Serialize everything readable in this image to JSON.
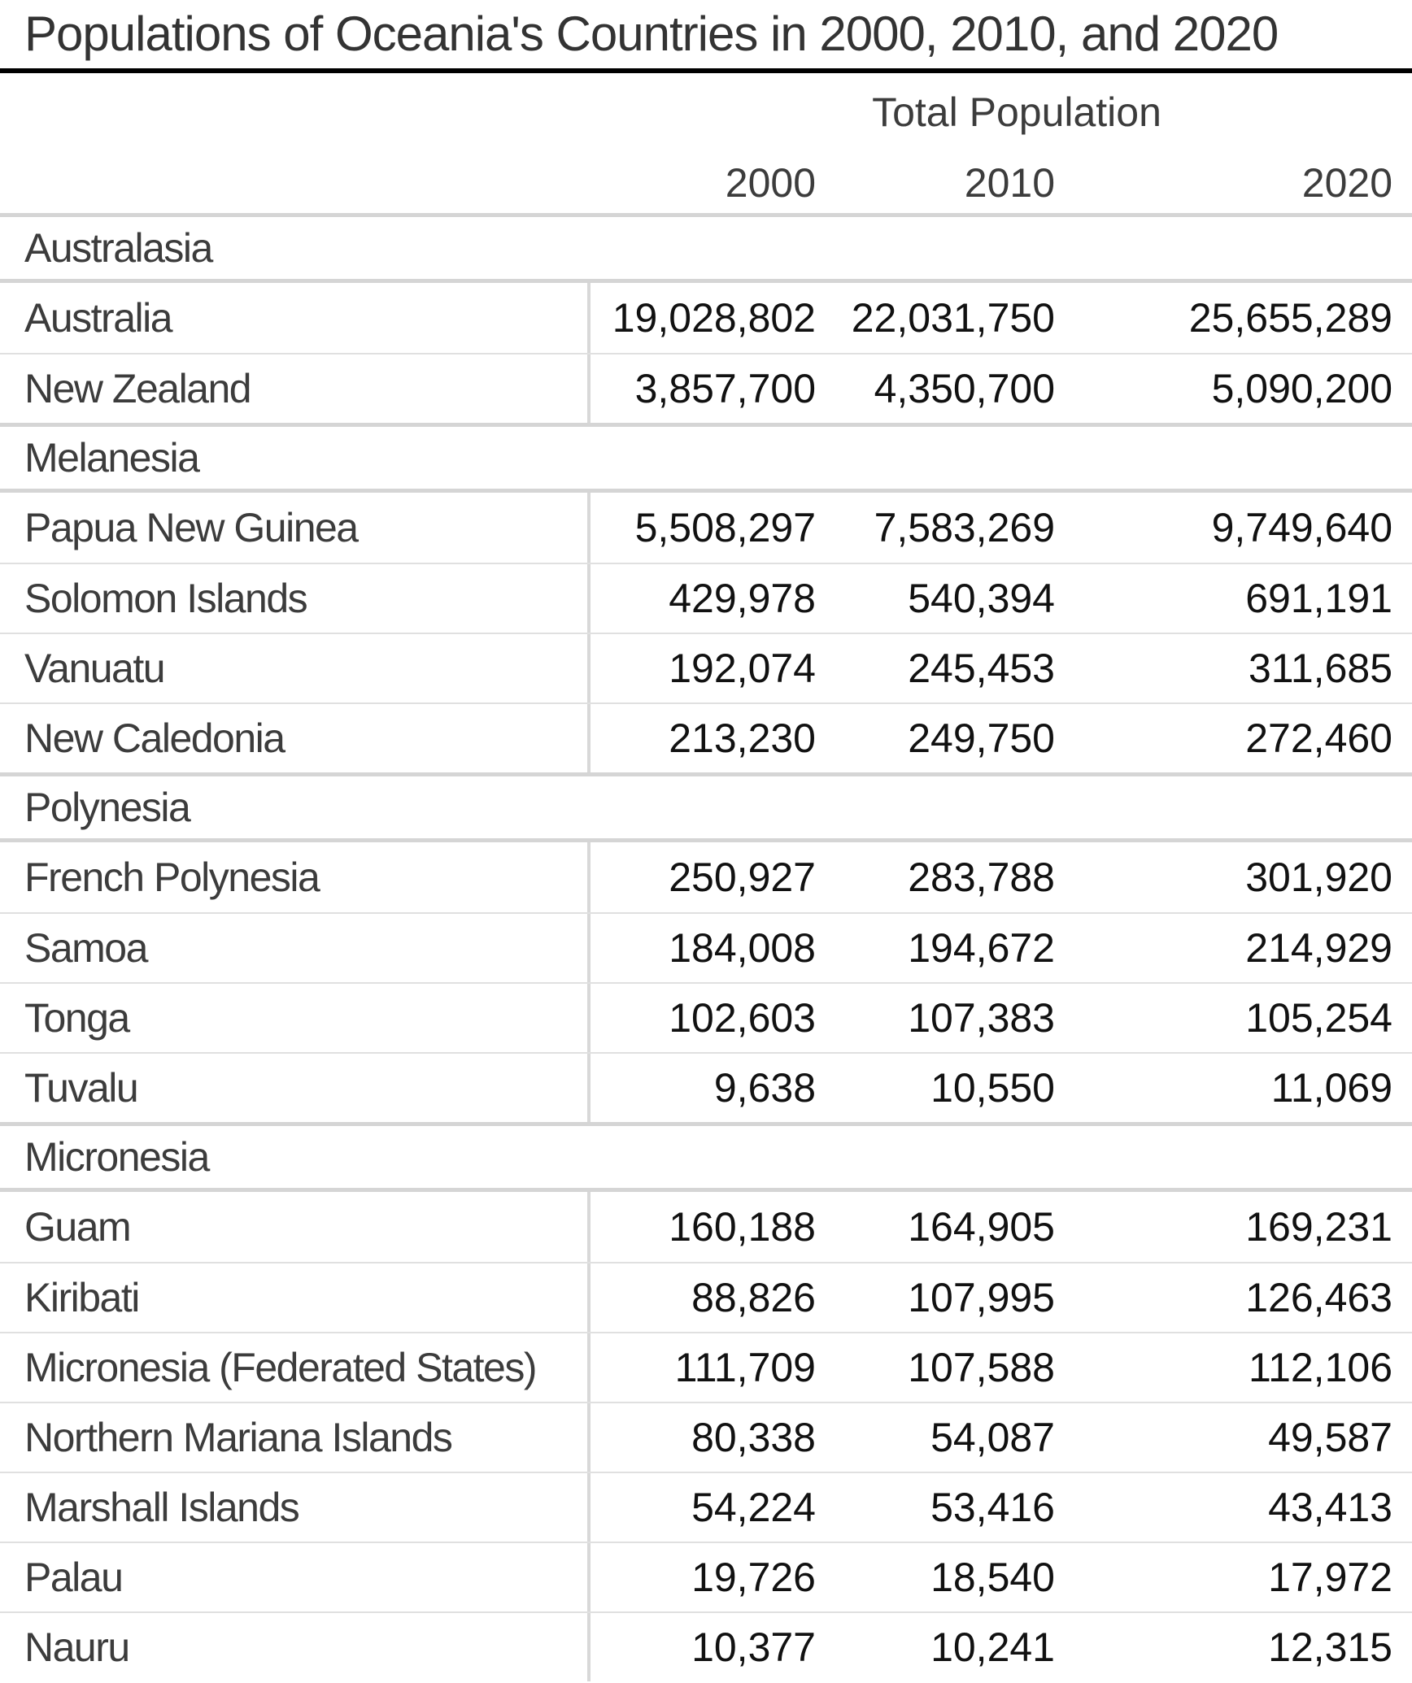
{
  "title": "Populations of Oceania's Countries in 2000, 2010, and 2020",
  "chart_data": {
    "type": "table",
    "title": "Populations of Oceania's Countries in 2000, 2010, and 2020",
    "column_group_header": "Total Population",
    "columns": [
      "2000",
      "2010",
      "2020"
    ],
    "number_format": "thousands-comma",
    "sections": [
      {
        "name": "Australasia",
        "rows": [
          {
            "country": "Australia",
            "values": [
              19028802,
              22031750,
              25655289
            ]
          },
          {
            "country": "New Zealand",
            "values": [
              3857700,
              4350700,
              5090200
            ]
          }
        ]
      },
      {
        "name": "Melanesia",
        "rows": [
          {
            "country": "Papua New Guinea",
            "values": [
              5508297,
              7583269,
              9749640
            ]
          },
          {
            "country": "Solomon Islands",
            "values": [
              429978,
              540394,
              691191
            ]
          },
          {
            "country": "Vanuatu",
            "values": [
              192074,
              245453,
              311685
            ]
          },
          {
            "country": "New Caledonia",
            "values": [
              213230,
              249750,
              272460
            ]
          }
        ]
      },
      {
        "name": "Polynesia",
        "rows": [
          {
            "country": "French Polynesia",
            "values": [
              250927,
              283788,
              301920
            ]
          },
          {
            "country": "Samoa",
            "values": [
              184008,
              194672,
              214929
            ]
          },
          {
            "country": "Tonga",
            "values": [
              102603,
              107383,
              105254
            ]
          },
          {
            "country": "Tuvalu",
            "values": [
              9638,
              10550,
              11069
            ]
          }
        ]
      },
      {
        "name": "Micronesia",
        "rows": [
          {
            "country": "Guam",
            "values": [
              160188,
              164905,
              169231
            ]
          },
          {
            "country": "Kiribati",
            "values": [
              88826,
              107995,
              126463
            ]
          },
          {
            "country": "Micronesia (Federated States)",
            "values": [
              111709,
              107588,
              112106
            ]
          },
          {
            "country": "Northern Mariana Islands",
            "values": [
              80338,
              54087,
              49587
            ]
          },
          {
            "country": "Marshall Islands",
            "values": [
              54224,
              53416,
              43413
            ]
          },
          {
            "country": "Palau",
            "values": [
              19726,
              18540,
              17972
            ]
          },
          {
            "country": "Nauru",
            "values": [
              10377,
              10241,
              12315
            ]
          }
        ]
      }
    ]
  },
  "colors": {
    "title_text": "#333333",
    "title_rule": "#000000",
    "label_text": "#3c3c3c",
    "number_text": "#111111",
    "row_separator": "#e0e0e0",
    "section_rule": "#d5d5d5",
    "column_divider": "#d8d8d8",
    "background": "#ffffff"
  }
}
